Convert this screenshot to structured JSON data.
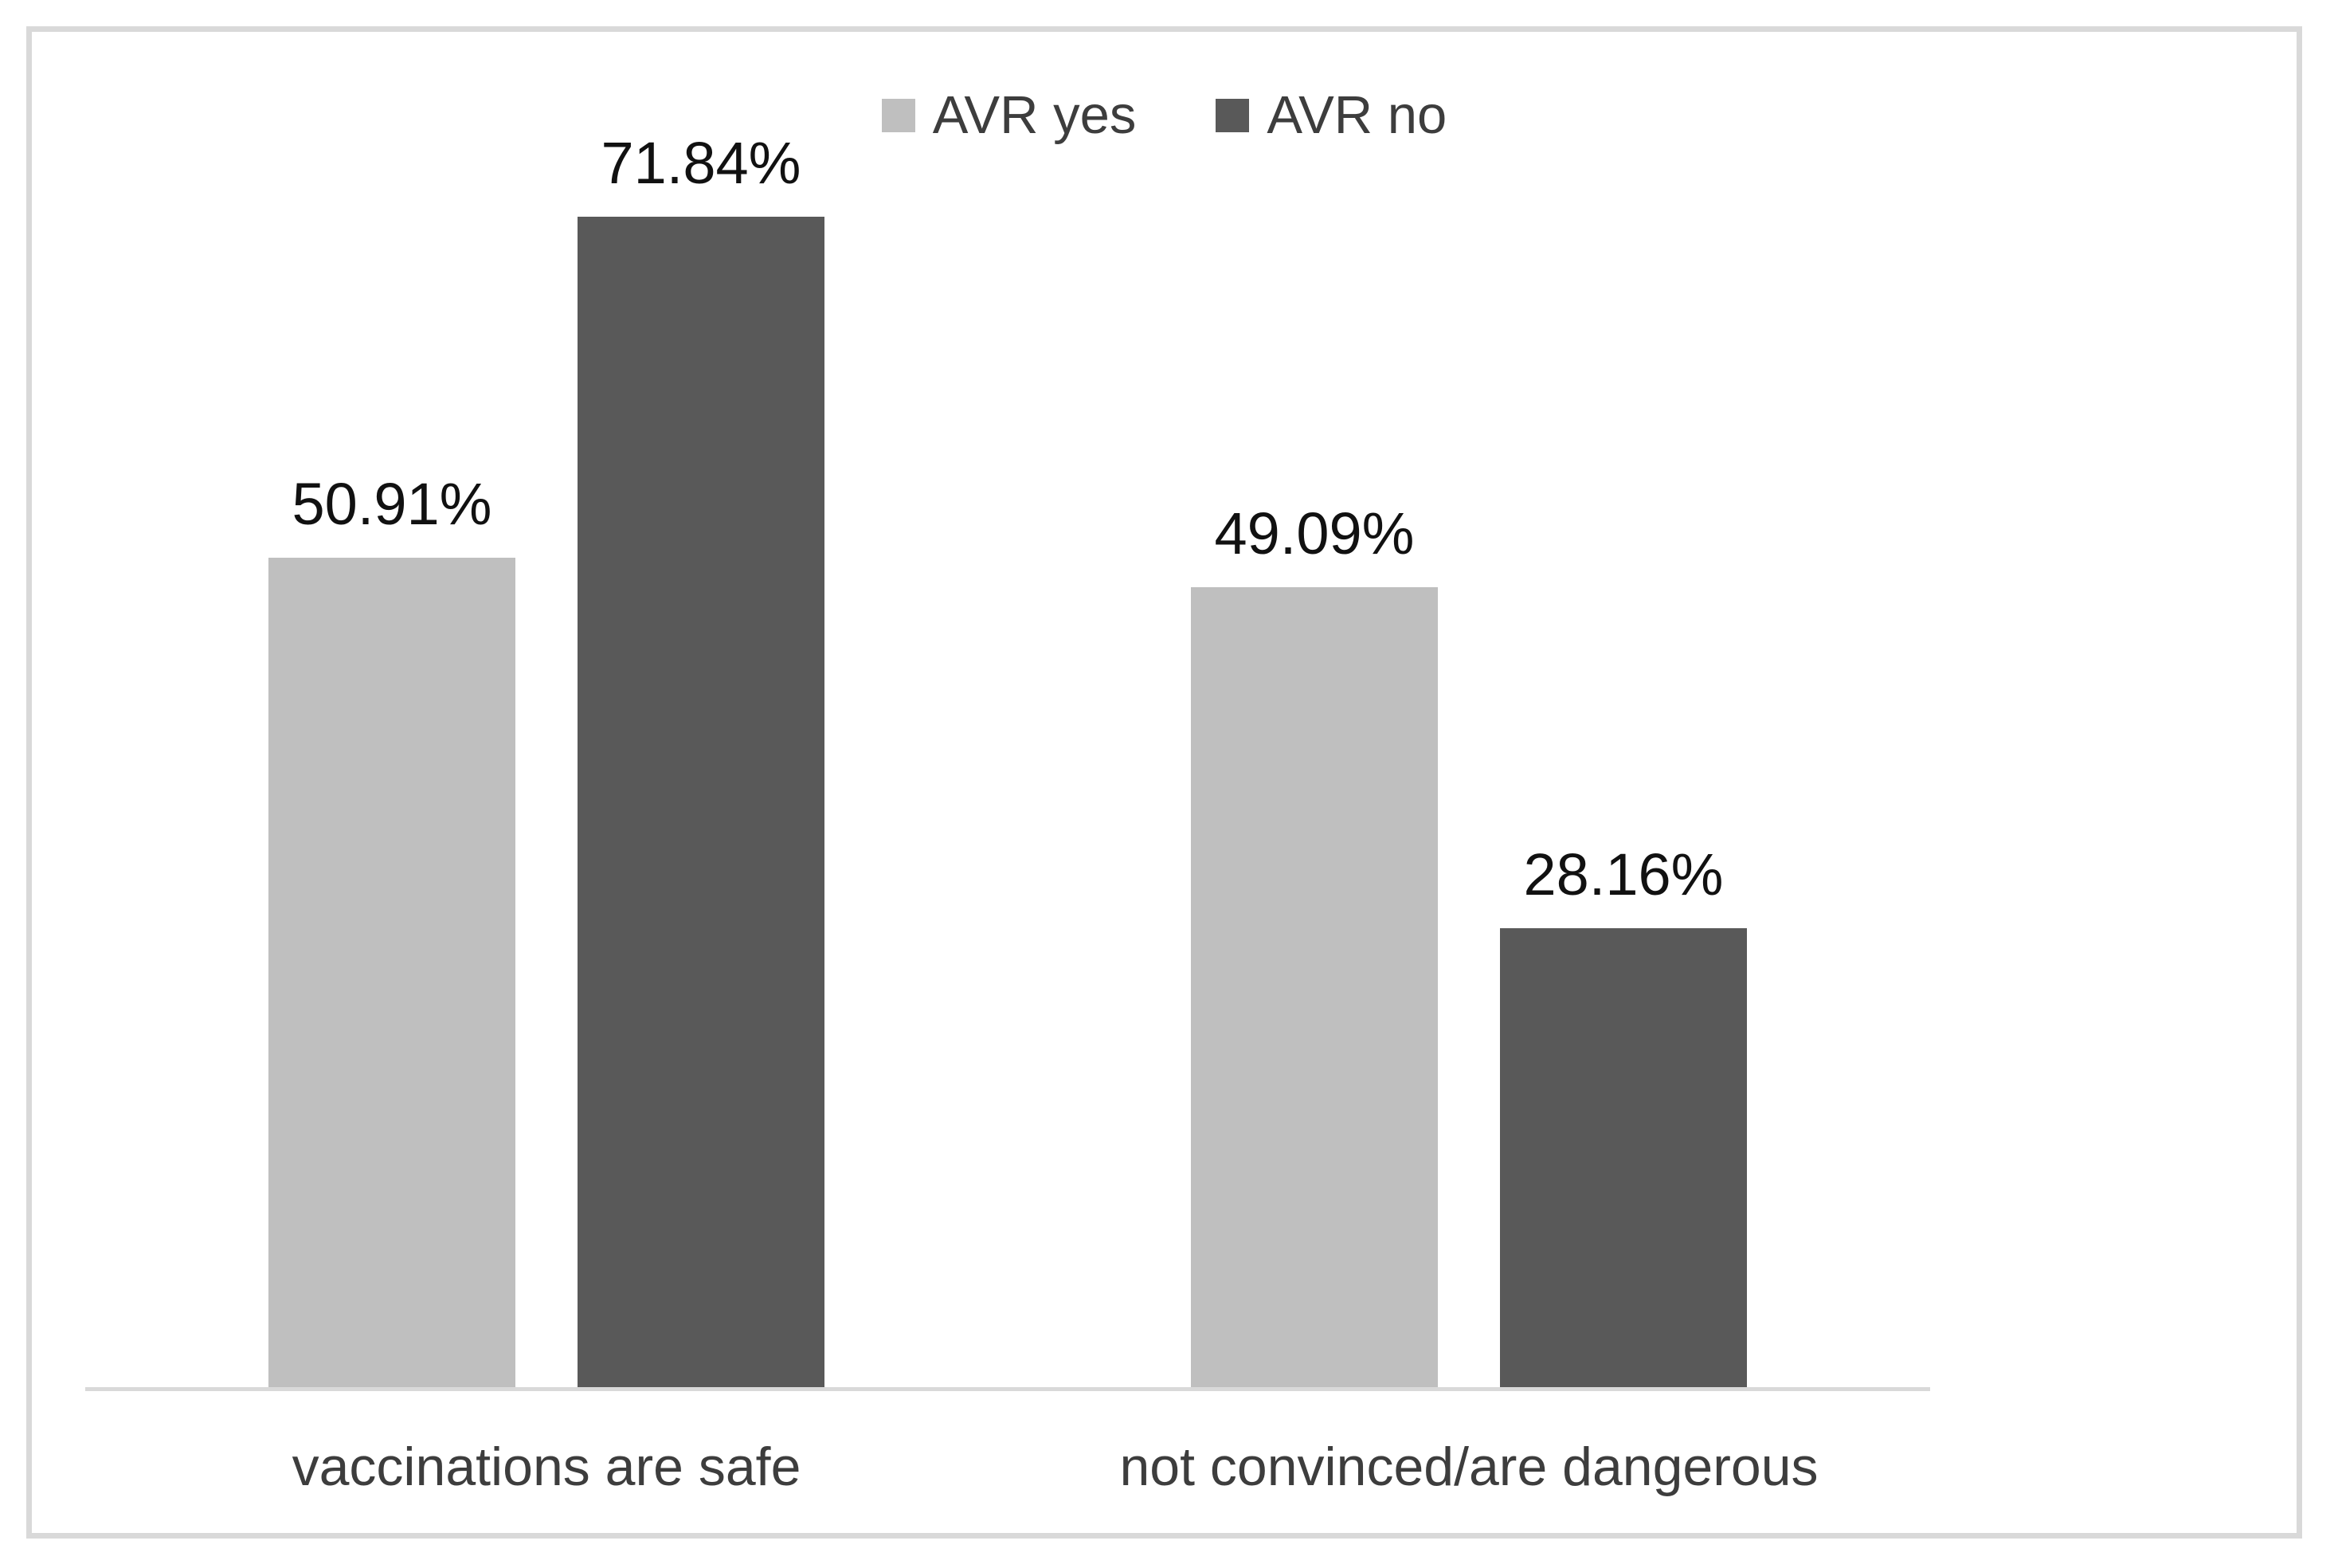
{
  "figure": {
    "background_color": "#ffffff",
    "border_color": "#d9d9d9",
    "axis_line_color": "#d9d9d9",
    "category_text_color": "#3d3d3d",
    "value_text_color": "#111111"
  },
  "legend": {
    "position": "top-center",
    "items": [
      {
        "label": "AVR yes",
        "color": "#bfbfbf"
      },
      {
        "label": "AVR no",
        "color": "#595959"
      }
    ]
  },
  "chart_data": {
    "type": "bar",
    "title": "",
    "xlabel": "",
    "ylabel": "",
    "categories": [
      "vaccinations are safe",
      "not convinced/are dangerous"
    ],
    "series": [
      {
        "name": "AVR yes",
        "color": "#bfbfbf",
        "values": [
          50.91,
          49.09
        ],
        "labels": [
          "50.91%",
          "49.09%"
        ]
      },
      {
        "name": "AVR no",
        "color": "#595959",
        "values": [
          71.84,
          28.16
        ],
        "labels": [
          "71.84%",
          "28.16%"
        ]
      }
    ],
    "ylim": [
      0,
      85
    ],
    "grid": false,
    "y_axis_visible": false,
    "value_label_format": "0.00%",
    "legend_position": "top-center"
  }
}
